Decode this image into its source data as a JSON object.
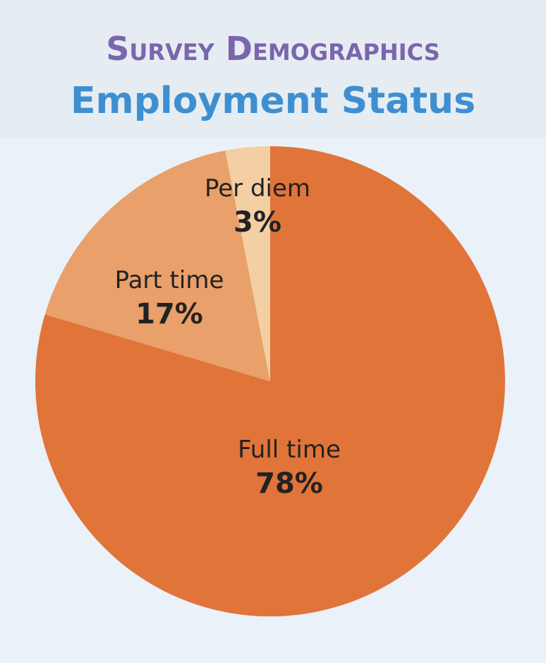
{
  "chart_data": {
    "type": "pie",
    "title": "Survey Demographics",
    "subtitle": "Employment Status",
    "categories": [
      "Full time",
      "Part time",
      "Per diem"
    ],
    "values": [
      78,
      17,
      3
    ],
    "value_labels": [
      "78%",
      "17%",
      "3%"
    ],
    "colors": [
      "#e07439",
      "#e9a06a",
      "#f3cfa3"
    ]
  }
}
